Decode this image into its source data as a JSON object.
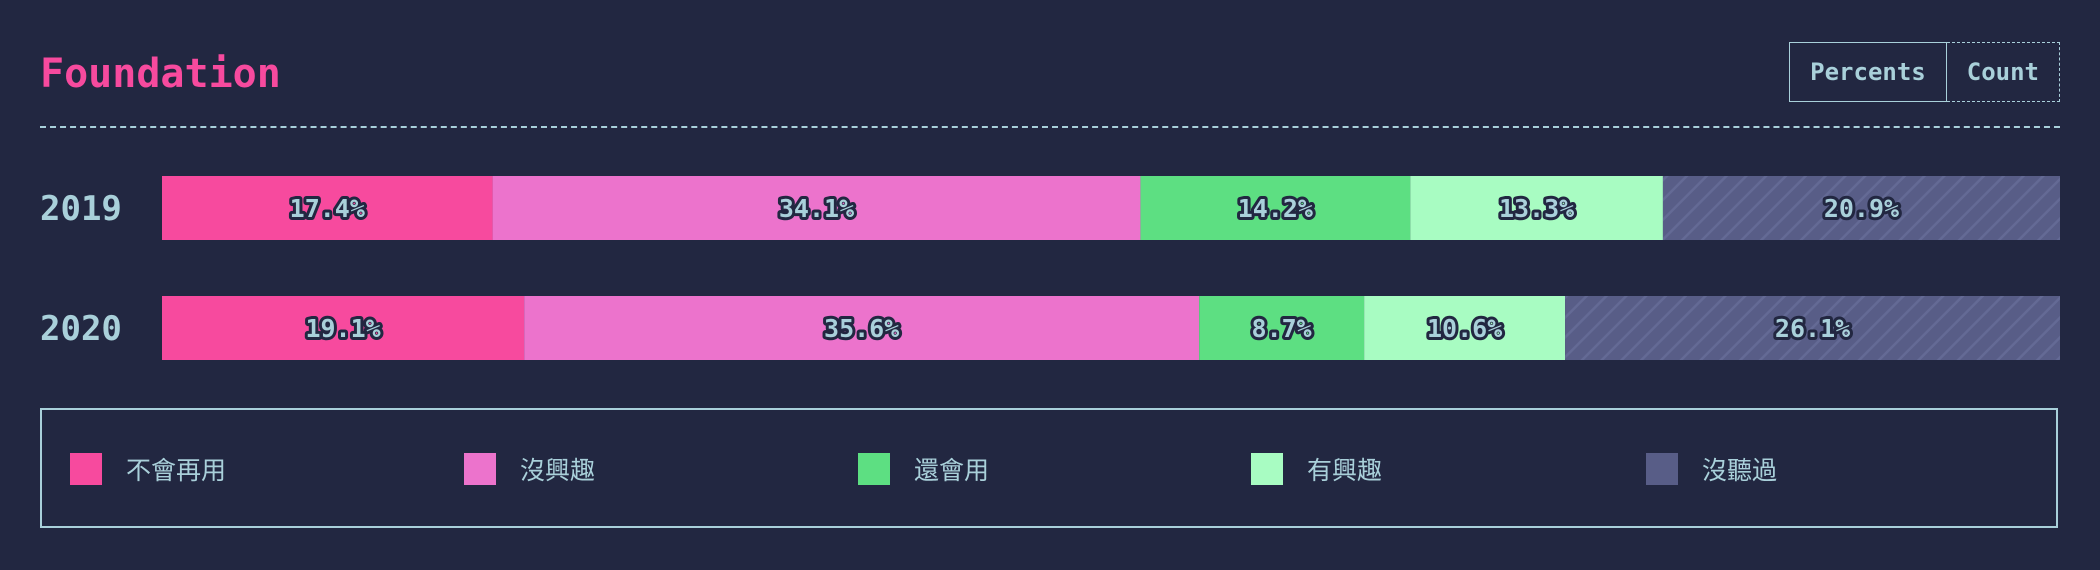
{
  "header": {
    "title": "Foundation",
    "toggle": {
      "percents_label": "Percents",
      "count_label": "Count",
      "active": "Percents"
    }
  },
  "colors": {
    "background": "#222741",
    "title": "#f74a9e",
    "text": "#a9d0da",
    "label_stroke": "#222741"
  },
  "chart_data": {
    "type": "bar",
    "orientation": "horizontal",
    "stacked": true,
    "normalized": true,
    "categories": [
      "2019",
      "2020"
    ],
    "series": [
      {
        "name": "不會再用",
        "color": "#f74a9e",
        "values": [
          17.4,
          19.1
        ],
        "labels": [
          "17.4%",
          "19.1%"
        ]
      },
      {
        "name": "沒興趣",
        "color": "#ec73cc",
        "values": [
          34.1,
          35.6
        ],
        "labels": [
          "34.1%",
          "35.6%"
        ]
      },
      {
        "name": "還會用",
        "color": "#5ddf82",
        "values": [
          14.2,
          8.7
        ],
        "labels": [
          "14.2%",
          "8.7%"
        ]
      },
      {
        "name": "有興趣",
        "color": "#a8fcc2",
        "values": [
          13.3,
          10.6
        ],
        "labels": [
          "13.3%",
          "10.6%"
        ]
      },
      {
        "name": "沒聽過",
        "color": "#585d87",
        "values": [
          20.9,
          26.1
        ],
        "labels": [
          "20.9%",
          "26.1%"
        ],
        "hatched": true
      }
    ],
    "xlim": [
      0,
      100
    ],
    "legend_position": "bottom"
  }
}
